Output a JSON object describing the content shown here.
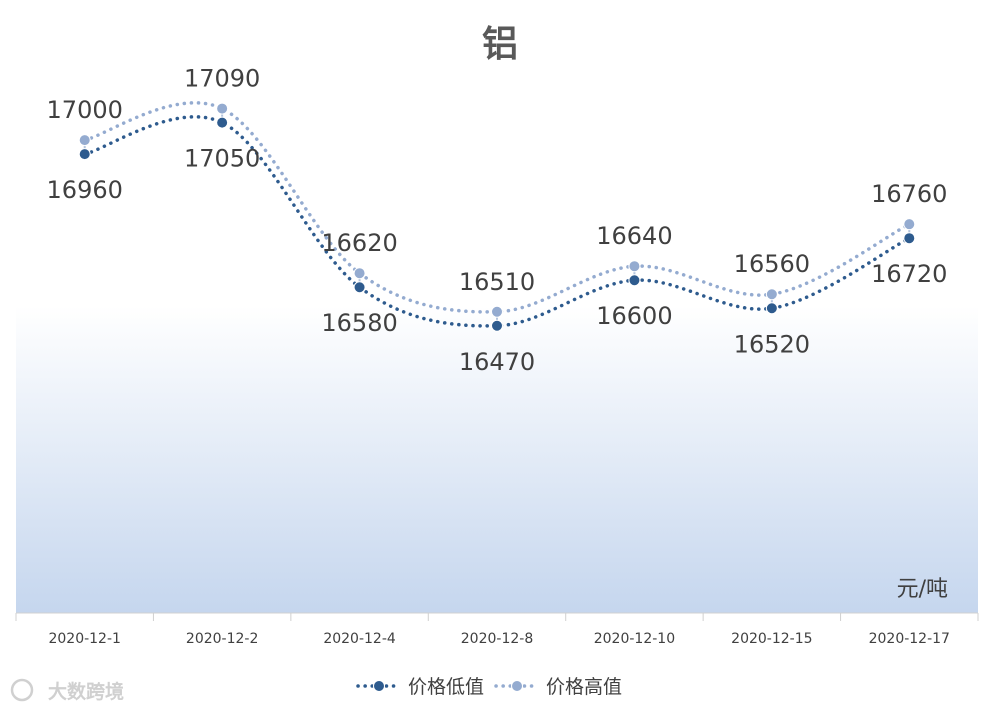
{
  "chart_data": {
    "type": "line",
    "title": "铝",
    "unit_label": "元/吨",
    "categories": [
      "2020-12-1",
      "2020-12-2",
      "2020-12-4",
      "2020-12-8",
      "2020-12-10",
      "2020-12-15",
      "2020-12-17"
    ],
    "series": [
      {
        "name": "价格低值",
        "values": [
          16960,
          17050,
          16580,
          16470,
          16600,
          16520,
          16720
        ],
        "color": "#2e5b8e",
        "label_position": "below"
      },
      {
        "name": "价格高值",
        "values": [
          17000,
          17090,
          16620,
          16510,
          16640,
          16560,
          16760
        ],
        "color": "#94abd0",
        "label_position": "above"
      }
    ],
    "ylim": [
      15650,
      17400
    ],
    "grid": false,
    "legend_position": "bottom",
    "background_gradient": [
      "#ffffff",
      "#c5d6ee"
    ]
  },
  "watermark": {
    "text": "大数跨境"
  }
}
